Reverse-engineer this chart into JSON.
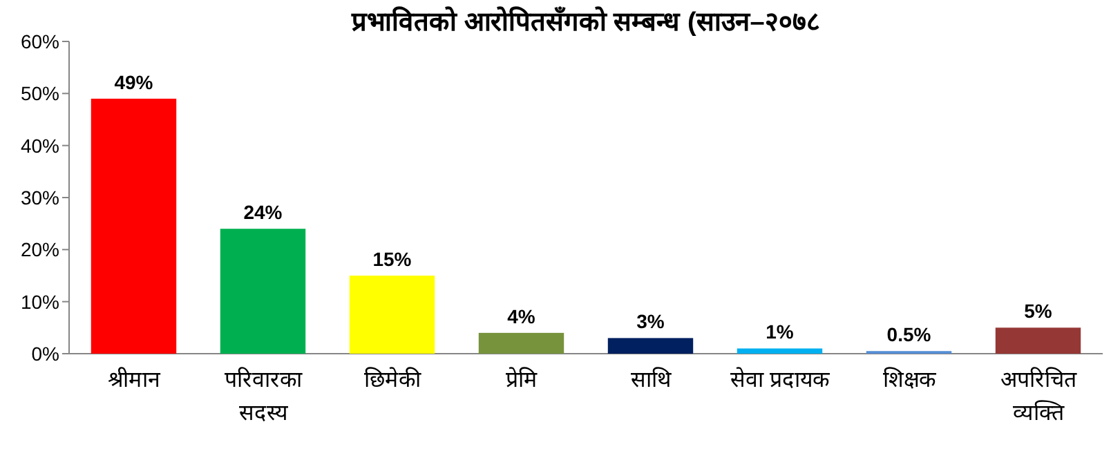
{
  "chart_data": {
    "type": "bar",
    "title": "प्रभावितको आरोपितसँगको सम्बन्ध (साउन–२०७८",
    "categories": [
      "श्रीमान",
      "परिवारका सदस्य",
      "छिमेकी",
      "प्रेमि",
      "साथि",
      "सेवा प्रदायक",
      "शिक्षक",
      "अपरिचित व्यक्ति"
    ],
    "values": [
      49,
      24,
      15,
      4,
      3,
      1,
      0.5,
      5
    ],
    "colors": [
      "#ff0000",
      "#00b050",
      "#ffff00",
      "#77933c",
      "#002060",
      "#00b0f0",
      "#558ed5",
      "#953735"
    ],
    "value_labels": [
      "49%",
      "24%",
      "15%",
      "4%",
      "3%",
      "1%",
      "0.5%",
      "5%"
    ],
    "ylim": [
      0,
      60
    ],
    "yticks": [
      {
        "value": 0,
        "label": "0%"
      },
      {
        "value": 10,
        "label": "10%"
      },
      {
        "value": 20,
        "label": "20%"
      },
      {
        "value": 30,
        "label": "30%"
      },
      {
        "value": 40,
        "label": "40%"
      },
      {
        "value": 50,
        "label": "50%"
      },
      {
        "value": 60,
        "label": "60%"
      }
    ]
  }
}
